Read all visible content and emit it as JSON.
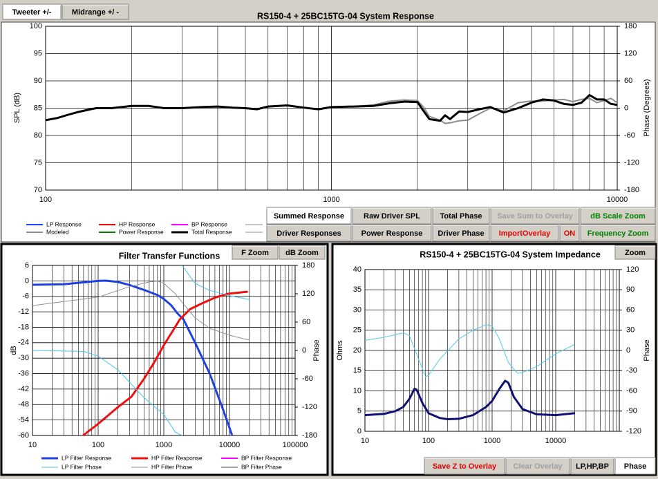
{
  "top_buttons": [
    "Tweeter +/-",
    "Midrange  +/ -"
  ],
  "control_buttons": [
    "Summed Response",
    "Raw Driver SPL",
    "Total Phase",
    "Save Sum to Overlay",
    "dB Scale Zoom",
    "Driver Responses",
    "Power Response",
    "Driver Phase",
    "ImportOverlay",
    "ON",
    "Frequency Zoom"
  ],
  "filter_buttons": [
    "F Zoom",
    "dB Zoom"
  ],
  "impedance_buttons": [
    "Zoom",
    "Save Z to Overlay",
    "Clear Overlay",
    "LP,HP,BP",
    "Phase"
  ],
  "chart_data": [
    {
      "type": "line",
      "title": "RS150-4  + 25BC15TG-04     System Response",
      "ylabel": "SPL (dB)",
      "y2label": "Phase (Degrees)",
      "log_x": true,
      "grid": true,
      "xlim": [
        100,
        10000
      ],
      "xticks": [
        100,
        1000,
        10000
      ],
      "ylim": [
        70,
        100
      ],
      "yticks": [
        70,
        75,
        80,
        85,
        90,
        95,
        100
      ],
      "y2lim": [
        -180,
        180
      ],
      "y2ticks": [
        -180,
        -120,
        -60,
        0,
        60,
        120,
        180
      ],
      "series": [
        {
          "name": "Modeled",
          "color": "#8c8c8c",
          "x": [
            100,
            110,
            120,
            130,
            150,
            170,
            200,
            230,
            260,
            300,
            350,
            400,
            450,
            500,
            550,
            600,
            700,
            800,
            900,
            1000,
            1200,
            1400,
            1600,
            1800,
            2000,
            2100,
            2200,
            2400,
            2500,
            2600,
            2800,
            3000,
            3300,
            3600,
            4000,
            4500,
            5000,
            5500,
            6000,
            6500,
            7000,
            7500,
            8000,
            8500,
            9000,
            9500,
            10000
          ],
          "values": [
            82.8,
            83.2,
            83.8,
            84.3,
            85,
            85,
            85.4,
            85.4,
            85,
            85,
            85.2,
            85.3,
            85.1,
            85,
            84.8,
            85.3,
            85.5,
            85.1,
            84.8,
            85.2,
            85.3,
            85.6,
            86.3,
            86.5,
            86.4,
            85.2,
            83.5,
            82.8,
            82.2,
            82.3,
            82.7,
            82.8,
            84,
            85,
            84.5,
            86,
            86.3,
            86.3,
            86.5,
            86.6,
            86.2,
            86.6,
            86.8,
            86,
            86.4,
            86.8,
            86
          ]
        },
        {
          "name": "Total Response",
          "color": "#000000",
          "x": [
            100,
            110,
            120,
            130,
            150,
            170,
            200,
            230,
            260,
            300,
            350,
            400,
            450,
            500,
            550,
            600,
            700,
            800,
            900,
            1000,
            1200,
            1400,
            1600,
            1800,
            2000,
            2100,
            2200,
            2400,
            2500,
            2600,
            2800,
            3000,
            3300,
            3600,
            4000,
            4500,
            5000,
            5500,
            6000,
            6500,
            7000,
            7500,
            8000,
            8500,
            9000,
            9500,
            10000
          ],
          "values": [
            82.8,
            83.2,
            83.8,
            84.3,
            85,
            85,
            85.4,
            85.4,
            85,
            85,
            85.2,
            85.3,
            85.1,
            85,
            84.8,
            85.3,
            85.5,
            85.1,
            84.8,
            85.2,
            85.3,
            85.4,
            85.9,
            86.2,
            86.1,
            84.5,
            83,
            82.7,
            83.7,
            83,
            84.4,
            84.3,
            84.8,
            85.2,
            84.2,
            85,
            86,
            86.6,
            86.4,
            85.8,
            85.6,
            86,
            87.4,
            86.6,
            86.6,
            85.8,
            85.6
          ]
        }
      ],
      "legend_only": [
        {
          "name": "LP Response",
          "color": "#1f3fff"
        },
        {
          "name": "HP Response",
          "color": "#ff0000"
        },
        {
          "name": "BP Response",
          "color": "#ff00ff"
        },
        {
          "name": "Power Response",
          "color": "#008000"
        }
      ]
    },
    {
      "type": "line",
      "title": "Filter Transfer Functions",
      "ylabel": "dB",
      "y2label": "Phase",
      "log_x": true,
      "grid": true,
      "xlim": [
        10,
        100000
      ],
      "xticks": [
        10,
        100,
        1000,
        10000,
        100000
      ],
      "ylim": [
        -60,
        6
      ],
      "yticks": [
        6,
        0,
        -6,
        -12,
        -18,
        -24,
        -30,
        -36,
        -42,
        -48,
        -54,
        -60
      ],
      "y2lim": [
        -180,
        180
      ],
      "y2ticks": [
        180,
        120,
        60,
        0,
        -60,
        -120,
        -180
      ],
      "series": [
        {
          "name": "LP Filter Response",
          "color": "#2040e0",
          "x": [
            10,
            30,
            50,
            100,
            130,
            200,
            300,
            500,
            800,
            1000,
            1300,
            1600,
            2000,
            3000,
            5000,
            8000,
            11000
          ],
          "values": [
            -1.5,
            -1.3,
            -0.8,
            0,
            0.1,
            -0.4,
            -1.6,
            -3.5,
            -5.5,
            -7,
            -9.5,
            -12.5,
            -15,
            -24,
            -36,
            -50,
            -60
          ]
        },
        {
          "name": "HP Filter Response",
          "color": "#ee1010",
          "x": [
            59,
            100,
            200,
            320,
            500,
            700,
            1000,
            1400,
            1745,
            2500,
            3630,
            6000,
            9500,
            19000
          ],
          "values": [
            -60,
            -55.5,
            -49,
            -45,
            -38,
            -32,
            -25,
            -19,
            -15,
            -11,
            -9,
            -6.5,
            -5,
            -4.2
          ]
        },
        {
          "name": "LP Filter Phase",
          "color": "#40c8e8",
          "axis": "y2",
          "x": [
            10,
            60,
            100,
            200,
            500,
            1000,
            1500,
            1900,
            1900,
            1900,
            2500,
            3000,
            5000,
            10000,
            20000
          ],
          "values": [
            0,
            -2,
            -12,
            -41,
            -100,
            -136,
            -173,
            -180,
            null,
            180,
            157,
            142,
            127,
            116,
            108
          ]
        },
        {
          "name": "HP Filter Phase",
          "color": "#909090",
          "axis": "y2",
          "x": [
            10,
            100,
            300,
            600,
            800,
            1000,
            1500,
            2000,
            3000,
            5000,
            10000,
            20000
          ],
          "values": [
            95,
            113,
            135,
            145,
            147,
            142,
            120,
            98,
            69,
            47,
            32,
            22
          ]
        }
      ],
      "legend_only": [
        {
          "name": "BP Filter Response",
          "color": "#ff00ff"
        },
        {
          "name": "BP Filter Phase",
          "color": "#a0a0a0"
        }
      ]
    },
    {
      "type": "line",
      "title": "RS150-4  + 25BC15TG-04     System Impedance",
      "ylabel": "Ohms",
      "y2label": "Phase",
      "log_x": true,
      "grid": true,
      "xlim": [
        10,
        100000
      ],
      "xticks": [
        10,
        100,
        1000,
        10000
      ],
      "ylim": [
        0,
        40
      ],
      "yticks": [
        0,
        5,
        10,
        15,
        20,
        25,
        30,
        35,
        40
      ],
      "y2lim": [
        -120,
        120
      ],
      "y2ticks": [
        -120,
        -90,
        -60,
        -30,
        0,
        30,
        60,
        90,
        120
      ],
      "series": [
        {
          "color": "#101070",
          "x": [
            10,
            20,
            30,
            40,
            50,
            60,
            65,
            80,
            100,
            150,
            200,
            300,
            500,
            800,
            1000,
            1300,
            1600,
            1800,
            2200,
            3000,
            5000,
            10000,
            20000
          ],
          "values": [
            4,
            4.3,
            5,
            6,
            8,
            10.5,
            10.3,
            7,
            4.5,
            3.3,
            3,
            3.1,
            4,
            6,
            7.5,
            10.5,
            12.5,
            12,
            8.5,
            5.5,
            4.2,
            4,
            4.5
          ]
        },
        {
          "color": "#50c8e8",
          "axis": "y2",
          "x": [
            10,
            20,
            40,
            50,
            70,
            90,
            100,
            150,
            300,
            500,
            800,
            1000,
            1300,
            1800,
            2500,
            3000,
            5000,
            10000,
            20000
          ],
          "values": [
            15,
            19.5,
            26,
            22,
            -13,
            -39,
            -37,
            -13,
            17,
            30,
            38,
            36,
            17,
            -18,
            -34,
            -33,
            -24,
            -5,
            9
          ]
        }
      ]
    }
  ]
}
